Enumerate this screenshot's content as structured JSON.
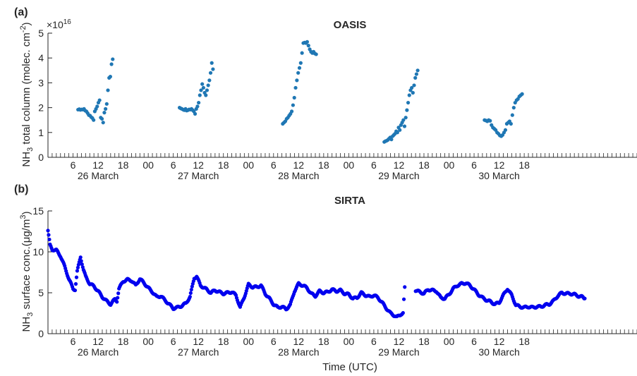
{
  "chart_data": [
    {
      "type": "scatter",
      "panel_label": "(a)",
      "title": "OASIS",
      "ylabel": "NH3 total column (molec. cm-2)",
      "ylabel_parts": {
        "base": "NH",
        "sub": "3",
        "mid": " total column (molec. cm",
        "sup": "-2",
        "end": ")"
      },
      "y_multiplier": "×10",
      "y_multiplier_exp": "16",
      "xlim_hours": [
        0,
        141
      ],
      "ylim": [
        0,
        5
      ],
      "yticks": [
        0,
        1,
        2,
        3,
        4,
        5
      ],
      "xtick_labels": [
        "6",
        "12",
        "18",
        "00",
        "6",
        "12",
        "18",
        "00",
        "6",
        "12",
        "18",
        "00",
        "6",
        "12",
        "18",
        "00",
        "6",
        "12",
        "18"
      ],
      "date_labels": [
        "26 March",
        "27 March",
        "28 March",
        "29 March",
        "30 March"
      ],
      "marker_color": "#1f77b4",
      "series": [
        {
          "x_start_hour": 7.2,
          "x_end_hour": 15.5,
          "values": [
            1.92,
            1.94,
            1.91,
            1.93,
            1.92,
            1.95,
            1.88,
            1.85,
            1.78,
            1.7,
            1.68,
            1.62,
            1.58,
            1.5,
            1.85,
            1.95,
            2.05,
            2.2,
            2.3,
            1.6,
            1.55,
            1.4,
            1.8,
            1.95,
            2.15,
            2.7,
            3.2,
            3.25,
            3.75,
            3.95
          ]
        },
        {
          "x_start_hour": 31.5,
          "x_end_hour": 39.5,
          "values": [
            2.0,
            1.97,
            1.95,
            1.92,
            1.9,
            1.95,
            1.88,
            1.9,
            1.93,
            1.92,
            1.95,
            1.9,
            1.85,
            1.75,
            1.95,
            2.05,
            2.2,
            2.5,
            2.7,
            2.95,
            2.8,
            2.6,
            2.5,
            2.7,
            2.9,
            3.1,
            3.4,
            3.8,
            3.55
          ]
        },
        {
          "x_start_hour": 56.2,
          "x_end_hour": 64.2,
          "values": [
            1.35,
            1.4,
            1.45,
            1.55,
            1.6,
            1.68,
            1.75,
            1.85,
            2.1,
            2.4,
            2.8,
            3.1,
            3.4,
            3.6,
            3.8,
            4.2,
            4.6,
            4.62,
            4.6,
            4.65,
            4.5,
            4.35,
            4.25,
            4.2,
            4.25,
            4.18,
            4.15
          ]
        },
        {
          "x_start_hour": 80.5,
          "x_end_hour": 88.5,
          "values": [
            0.62,
            0.65,
            0.67,
            0.7,
            0.75,
            0.8,
            0.72,
            0.85,
            0.9,
            0.95,
            1.05,
            1.0,
            1.2,
            1.1,
            1.3,
            1.4,
            1.5,
            1.25,
            1.6,
            1.9,
            2.2,
            2.5,
            2.7,
            2.8,
            2.6,
            2.9,
            3.2,
            3.35,
            3.5
          ]
        },
        {
          "x_start_hour": 104.5,
          "x_end_hour": 113.5,
          "values": [
            1.5,
            1.48,
            1.45,
            1.5,
            1.47,
            1.3,
            1.2,
            1.15,
            1.1,
            1.0,
            0.95,
            0.88,
            0.85,
            0.9,
            1.0,
            1.1,
            1.35,
            1.4,
            1.45,
            1.35,
            1.7,
            2.0,
            2.2,
            2.3,
            2.35,
            2.45,
            2.5,
            2.55
          ]
        }
      ]
    },
    {
      "type": "scatter",
      "panel_label": "(b)",
      "title": "SIRTA",
      "ylabel": "NH3 surface conc.(μg/m3)",
      "ylabel_parts": {
        "base": "NH",
        "sub": "3",
        "mid": " surface conc.(μg/m",
        "sup": "3",
        "end": ")"
      },
      "xlabel": "Time (UTC)",
      "xlim_hours": [
        0,
        141
      ],
      "ylim": [
        0,
        15
      ],
      "yticks": [
        0,
        5,
        10,
        15
      ],
      "xtick_labels": [
        "6",
        "12",
        "18",
        "00",
        "6",
        "12",
        "18",
        "00",
        "6",
        "12",
        "18",
        "00",
        "6",
        "12",
        "18",
        "00",
        "6",
        "12",
        "18"
      ],
      "date_labels": [
        "26 March",
        "27 March",
        "28 March",
        "29 March",
        "30 March"
      ],
      "marker_color": "#0000ee",
      "keypoints": [
        [
          0,
          12.6
        ],
        [
          0.5,
          10.8
        ],
        [
          1,
          10.3
        ],
        [
          2,
          10.2
        ],
        [
          3,
          9.5
        ],
        [
          4,
          8.2
        ],
        [
          5,
          6.7
        ],
        [
          6,
          5.5
        ],
        [
          6.5,
          5.4
        ],
        [
          7,
          7.6
        ],
        [
          7.8,
          9.4
        ],
        [
          8.5,
          7.8
        ],
        [
          9,
          7.0
        ],
        [
          10,
          6.1
        ],
        [
          11,
          5.8
        ],
        [
          12,
          5.2
        ],
        [
          13,
          4.5
        ],
        [
          14,
          4.0
        ],
        [
          15,
          3.6
        ],
        [
          16,
          4.2
        ],
        [
          16.5,
          4.0
        ],
        [
          17,
          5.5
        ],
        [
          18,
          6.4
        ],
        [
          19,
          6.6
        ],
        [
          20,
          6.5
        ],
        [
          21,
          5.9
        ],
        [
          22,
          6.7
        ],
        [
          23,
          6.2
        ],
        [
          24,
          5.6
        ],
        [
          25,
          5.1
        ],
        [
          26,
          4.5
        ],
        [
          27,
          4.6
        ],
        [
          28,
          4.1
        ],
        [
          29,
          3.6
        ],
        [
          30,
          3.1
        ],
        [
          31,
          3.2
        ],
        [
          32,
          3.4
        ],
        [
          33,
          3.7
        ],
        [
          34,
          4.5
        ],
        [
          35,
          6.8
        ],
        [
          35.6,
          7.0
        ],
        [
          36.5,
          5.9
        ],
        [
          38,
          5.4
        ],
        [
          39,
          5.0
        ],
        [
          40,
          5.3
        ],
        [
          41,
          5.1
        ],
        [
          42,
          4.9
        ],
        [
          43,
          5.0
        ],
        [
          44,
          5.1
        ],
        [
          45,
          4.7
        ],
        [
          46,
          3.2
        ],
        [
          47,
          4.5
        ],
        [
          48,
          6.0
        ],
        [
          49,
          5.7
        ],
        [
          50,
          5.7
        ],
        [
          51,
          5.9
        ],
        [
          52,
          4.9
        ],
        [
          53,
          4.3
        ],
        [
          54,
          3.6
        ],
        [
          55,
          3.2
        ],
        [
          56,
          3.3
        ],
        [
          57,
          3.0
        ],
        [
          58,
          3.5
        ],
        [
          59,
          5.2
        ],
        [
          60,
          6.1
        ],
        [
          61,
          5.9
        ],
        [
          62,
          5.6
        ],
        [
          63,
          4.9
        ],
        [
          64,
          4.6
        ],
        [
          65,
          5.2
        ],
        [
          66,
          5.0
        ],
        [
          67,
          5.1
        ],
        [
          68,
          5.4
        ],
        [
          69,
          5.2
        ],
        [
          70,
          5.3
        ],
        [
          71,
          4.9
        ],
        [
          72,
          4.8
        ],
        [
          73,
          4.3
        ],
        [
          74,
          4.4
        ],
        [
          75,
          5.0
        ],
        [
          76,
          4.7
        ],
        [
          77,
          4.5
        ],
        [
          78,
          4.7
        ],
        [
          79,
          4.4
        ],
        [
          80,
          3.8
        ],
        [
          81,
          3.1
        ],
        [
          82,
          2.5
        ],
        [
          83,
          2.2
        ],
        [
          83.5,
          2.0
        ],
        [
          84.5,
          2.4
        ],
        [
          85,
          2.5
        ],
        [
          85.4,
          5.7
        ],
        [
          88,
          5.3
        ],
        [
          89,
          5.1
        ],
        [
          90,
          4.9
        ],
        [
          91,
          5.4
        ],
        [
          92,
          5.3
        ],
        [
          93,
          5.2
        ],
        [
          94,
          4.4
        ],
        [
          95,
          4.3
        ],
        [
          96,
          4.8
        ],
        [
          97,
          5.5
        ],
        [
          98,
          5.9
        ],
        [
          99,
          6.1
        ],
        [
          100,
          6.2
        ],
        [
          101,
          5.9
        ],
        [
          102,
          5.4
        ],
        [
          103,
          4.8
        ],
        [
          104,
          4.4
        ],
        [
          105,
          4.1
        ],
        [
          106,
          3.9
        ],
        [
          107,
          3.6
        ],
        [
          108,
          3.8
        ],
        [
          109,
          4.7
        ],
        [
          110,
          5.5
        ],
        [
          111,
          4.7
        ],
        [
          112,
          3.5
        ],
        [
          113,
          3.3
        ],
        [
          114,
          3.2
        ],
        [
          115,
          3.3
        ],
        [
          116,
          3.2
        ],
        [
          117,
          3.3
        ],
        [
          118,
          3.3
        ],
        [
          119,
          3.5
        ],
        [
          120,
          3.6
        ],
        [
          121,
          4.0
        ],
        [
          122,
          4.6
        ],
        [
          123,
          5.0
        ],
        [
          124,
          4.9
        ],
        [
          125,
          4.9
        ],
        [
          126,
          4.8
        ],
        [
          127,
          4.6
        ],
        [
          127.8,
          4.5
        ],
        [
          128.5,
          4.3
        ]
      ]
    }
  ]
}
